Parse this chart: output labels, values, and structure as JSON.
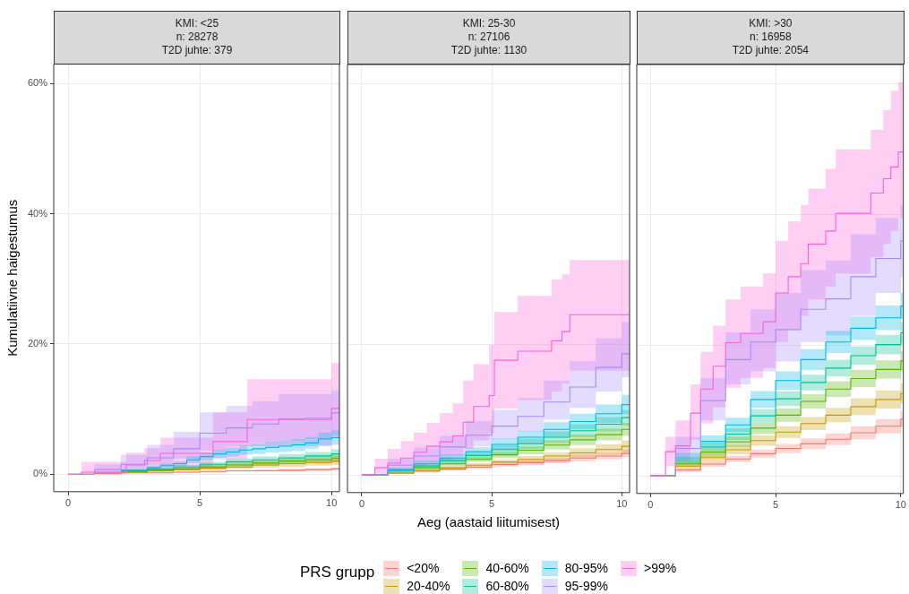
{
  "chart_data": [
    {
      "type": "step",
      "title": "KMI: <25\nn: 28278\nT2D juhte: 379",
      "ylabel": "Kumulatiivne haigestumus",
      "legend": "bottom",
      "legend_title": "PRS grupp",
      "xlim": [
        -0.55,
        10.3
      ],
      "xticks": [
        0,
        5,
        10
      ],
      "ylim": [
        -2.7,
        63
      ],
      "yticks": [
        {
          "value": 0,
          "label": "0%"
        },
        {
          "value": 20,
          "label": "20%"
        },
        {
          "value": 40,
          "label": "40%"
        },
        {
          "value": 60,
          "label": "60%"
        }
      ],
      "grid": true,
      "x": [
        0,
        1,
        2,
        3,
        4,
        5,
        6,
        7,
        8,
        9,
        10,
        10.3
      ],
      "series": [
        {
          "name": "<20%",
          "color": "#f8766d",
          "values": [
            0,
            0.1,
            0.2,
            0.2,
            0.3,
            0.4,
            0.5,
            0.5,
            0.6,
            0.7,
            0.8,
            0.8
          ],
          "lower": [
            0,
            0,
            0.1,
            0.1,
            0.2,
            0.3,
            0.4,
            0.4,
            0.4,
            0.5,
            0.6,
            0.6
          ],
          "upper": [
            0,
            0.2,
            0.2,
            0.3,
            0.4,
            0.5,
            0.6,
            0.7,
            0.8,
            0.9,
            1.0,
            1.0
          ]
        },
        {
          "name": "20-40%",
          "color": "#c49a00",
          "values": [
            null,
            null,
            0.3,
            0.5,
            0.7,
            0.9,
            1.1,
            1.4,
            1.6,
            1.8,
            2.0,
            2.0
          ],
          "lower": [
            0,
            0,
            0.2,
            0.3,
            0.5,
            0.6,
            0.8,
            1.0,
            1.1,
            1.3,
            1.4,
            1.4
          ],
          "upper": [
            0,
            0.2,
            0.4,
            0.7,
            0.9,
            1.2,
            1.4,
            1.8,
            2.1,
            2.3,
            2.6,
            2.6
          ]
        },
        {
          "name": "40-60%",
          "color": "#53b400",
          "values": [
            null,
            null,
            0.4,
            0.6,
            0.8,
            1.1,
            1.4,
            1.7,
            2.0,
            2.2,
            2.4,
            2.4
          ],
          "lower": [
            0,
            0.1,
            0.3,
            0.4,
            0.6,
            0.8,
            1.0,
            1.3,
            1.5,
            1.7,
            1.8,
            1.8
          ],
          "upper": [
            0,
            0.3,
            0.5,
            0.8,
            1.0,
            1.4,
            1.8,
            2.1,
            2.5,
            2.7,
            3.0,
            3.0
          ]
        },
        {
          "name": "60-80%",
          "color": "#00c094",
          "values": [
            null,
            null,
            0.5,
            0.8,
            1.1,
            1.5,
            1.9,
            2.2,
            2.5,
            2.8,
            3.1,
            3.1
          ],
          "lower": [
            0,
            0.1,
            0.3,
            0.5,
            0.8,
            1.1,
            1.4,
            1.7,
            1.9,
            2.2,
            2.4,
            2.4
          ],
          "upper": [
            0,
            0.3,
            0.7,
            1.1,
            1.4,
            1.9,
            2.4,
            2.7,
            3.1,
            3.4,
            3.8,
            3.8
          ]
        },
        {
          "name": "80-95%",
          "color": "#00b6eb",
          "x": [
            0,
            2,
            3,
            3.5,
            4,
            4.5,
            5,
            5.5,
            6,
            6.5,
            7,
            7.5,
            8,
            8.5,
            9,
            9.5,
            10,
            10.3
          ],
          "values": [
            null,
            0.6,
            1.0,
            1.3,
            1.6,
            2.2,
            2.7,
            3.1,
            3.4,
            3.7,
            3.9,
            4.1,
            4.3,
            4.5,
            4.8,
            5.4,
            5.6,
            5.6
          ],
          "lower": [
            0,
            0.4,
            0.7,
            1.0,
            1.2,
            1.7,
            2.1,
            2.5,
            2.7,
            3.0,
            3.1,
            3.3,
            3.4,
            3.6,
            3.9,
            4.4,
            4.5,
            4.5
          ],
          "upper": [
            0,
            0.8,
            1.3,
            1.6,
            2.0,
            2.7,
            3.3,
            3.7,
            4.1,
            4.4,
            4.7,
            4.9,
            5.2,
            5.4,
            5.7,
            6.4,
            6.7,
            6.7
          ]
        },
        {
          "name": "95-99%",
          "color": "#a58aff",
          "values": [
            0,
            0.7,
            1.5,
            2.5,
            3.9,
            6.3,
            7.1,
            7.7,
            8.5,
            8.6,
            9.4,
            9.4
          ],
          "lower": [
            0,
            0.3,
            0.8,
            1.4,
            2.4,
            3.6,
            4.3,
            4.8,
            5.2,
            5.4,
            6.0,
            6.0
          ],
          "upper": [
            0,
            1.5,
            3,
            4.5,
            6.5,
            9.5,
            10.5,
            11.2,
            12.3,
            12.3,
            12.9,
            12.9
          ]
        },
        {
          "name": ">99%",
          "color": "#fb61d7",
          "x": [
            0,
            0.5,
            2.2,
            2.9,
            3.5,
            5.5,
            6.8,
            10,
            10.3
          ],
          "values": [
            0,
            0.3,
            1.4,
            2.1,
            3.2,
            5.0,
            8.4,
            10.1,
            10.1
          ],
          "lower": [
            0,
            0,
            0.3,
            0.6,
            1.1,
            2.3,
            4.3,
            5.5,
            5.5
          ],
          "upper": [
            0,
            1.9,
            3.3,
            4.0,
            5.6,
            9.5,
            14.6,
            17.1,
            17.1
          ]
        }
      ]
    },
    {
      "type": "step",
      "title": "KMI: 25-30\nn: 27106\nT2D juhte: 1130",
      "xlabel": "Aeg (aastaid liitumisest)",
      "tick_labels": "x",
      "xlim": [
        -0.55,
        10.3
      ],
      "xticks": [
        0,
        5,
        10
      ],
      "ylim": [
        -2.7,
        63
      ],
      "yticks": [
        0,
        20,
        40,
        60
      ],
      "grid": true,
      "x": [
        0,
        1,
        2,
        3,
        4,
        5,
        6,
        7,
        8,
        9,
        10,
        10.3
      ],
      "series": [
        {
          "color": "#f8766d",
          "values": [
            0,
            0.3,
            0.6,
            0.9,
            1.2,
            1.6,
            1.9,
            2.2,
            2.6,
            2.9,
            3.3,
            3.3
          ],
          "lower": [
            0,
            0.2,
            0.4,
            0.7,
            0.9,
            1.3,
            1.5,
            1.8,
            2.1,
            2.4,
            2.7,
            2.7
          ],
          "upper": [
            0,
            0.4,
            0.8,
            1.1,
            1.5,
            1.9,
            2.3,
            2.6,
            3.1,
            3.4,
            3.9,
            3.9
          ]
        },
        {
          "color": "#c49a00",
          "values": [
            0,
            0.3,
            0.7,
            1.1,
            1.5,
            2.0,
            2.4,
            2.9,
            3.4,
            3.9,
            4.4,
            4.4
          ],
          "lower": [
            0,
            0.2,
            0.5,
            0.8,
            1.2,
            1.6,
            1.9,
            2.3,
            2.7,
            3.1,
            3.5,
            3.5
          ],
          "upper": [
            0,
            0.4,
            0.9,
            1.4,
            1.8,
            2.4,
            2.9,
            3.5,
            4.1,
            4.7,
            5.3,
            5.3
          ]
        },
        {
          "color": "#53b400",
          "values": [
            null,
            null,
            1.1,
            1.7,
            2.4,
            3.1,
            3.8,
            4.6,
            5.4,
            6.2,
            7.0,
            7.0
          ],
          "lower": [
            0,
            0.3,
            0.8,
            1.4,
            2.0,
            2.6,
            3.2,
            3.9,
            4.6,
            5.3,
            6.0,
            6.0
          ],
          "upper": [
            0,
            0.7,
            1.4,
            2.0,
            2.8,
            3.6,
            4.4,
            5.3,
            6.2,
            7.1,
            8.0,
            8.0
          ]
        },
        {
          "color": "#00c094",
          "values": [
            0,
            0.7,
            1.4,
            2.2,
            3.0,
            3.9,
            4.8,
            5.8,
            6.8,
            7.8,
            8.8,
            8.8
          ],
          "lower": [
            0,
            0.4,
            1.0,
            1.7,
            2.4,
            3.2,
            4.0,
            4.9,
            5.8,
            6.7,
            7.6,
            7.6
          ],
          "upper": [
            0,
            1.0,
            1.8,
            2.7,
            3.6,
            4.6,
            5.6,
            6.7,
            7.8,
            8.9,
            10.0,
            10.0
          ]
        },
        {
          "color": "#00b6eb",
          "values": [
            0,
            0.8,
            1.7,
            2.6,
            3.6,
            4.7,
            5.8,
            7.0,
            8.2,
            9.4,
            10.8,
            10.8
          ],
          "lower": [
            0,
            0.5,
            1.2,
            2.0,
            2.9,
            3.8,
            4.8,
            5.9,
            7.0,
            8.0,
            9.3,
            9.3
          ],
          "upper": [
            0,
            1.1,
            2.2,
            3.2,
            4.3,
            5.6,
            6.8,
            8.1,
            9.4,
            10.8,
            12.3,
            12.3
          ]
        },
        {
          "color": "#a58aff",
          "values": [
            0,
            1.5,
            2.9,
            4.3,
            6.1,
            7.5,
            9.0,
            11.2,
            13.5,
            16.5,
            18.6,
            18.6
          ],
          "lower": [
            0,
            0.8,
            1.9,
            3,
            4.4,
            5.5,
            6.7,
            8.5,
            10.3,
            12.8,
            15,
            15
          ],
          "upper": [
            0,
            2.5,
            4.2,
            6,
            8.3,
            10,
            11.8,
            14.5,
            17.5,
            21,
            23.5,
            23.5
          ]
        },
        {
          "color": "#fb61d7",
          "x": [
            0,
            0.5,
            1,
            1.5,
            2,
            2.5,
            3,
            3.5,
            3.9,
            4.3,
            4.9,
            5.1,
            6,
            7.3,
            7.7,
            8,
            10.3
          ],
          "values": [
            0,
            1.1,
            1.8,
            2.6,
            3.5,
            4.4,
            5.1,
            6.0,
            8.1,
            10.5,
            12.2,
            17.6,
            19.0,
            20.6,
            22.0,
            24.6,
            24.6
          ],
          "lower": [
            0,
            0.2,
            0.5,
            0.9,
            1.3,
            1.8,
            2.2,
            2.8,
            4,
            5.3,
            6.5,
            10.2,
            11.5,
            12.8,
            14,
            16,
            16
          ],
          "upper": [
            0,
            2.5,
            4,
            5.2,
            6.5,
            8,
            9.5,
            11,
            14.5,
            17,
            20,
            25,
            27.5,
            30,
            30.8,
            33,
            33
          ]
        }
      ]
    },
    {
      "type": "step",
      "title": "KMI: >30\nn: 16958\nT2D juhte: 2054",
      "tick_labels": "x",
      "xlim": [
        -0.55,
        10.1
      ],
      "xticks": [
        0,
        5,
        10
      ],
      "ylim": [
        -2.7,
        63
      ],
      "yticks": [
        0,
        20,
        40,
        60
      ],
      "grid": true,
      "x": [
        0,
        1,
        2,
        3,
        4,
        5,
        6,
        7,
        8,
        9,
        10,
        10.1
      ],
      "series": [
        {
          "color": "#f8766d",
          "values": [
            0,
            0.9,
            1.8,
            2.6,
            3.4,
            4.2,
            4.9,
            5.6,
            6.6,
            7.6,
            8.7,
            8.7
          ],
          "lower": [
            0,
            0.6,
            1.4,
            2.1,
            2.8,
            3.5,
            4.1,
            4.7,
            5.6,
            6.5,
            7.5,
            7.5
          ],
          "upper": [
            0,
            1.2,
            2.2,
            3.1,
            4.0,
            4.9,
            5.7,
            6.5,
            7.6,
            8.7,
            9.9,
            9.9
          ]
        },
        {
          "color": "#c49a00",
          "values": [
            0,
            1.5,
            2.8,
            4.0,
            5.4,
            6.7,
            8.0,
            9.3,
            10.6,
            11.7,
            12.6,
            12.6
          ],
          "lower": [
            0,
            1.1,
            2.2,
            3.3,
            4.6,
            5.8,
            7.0,
            8.2,
            9.3,
            10.3,
            11.1,
            11.1
          ],
          "upper": [
            0,
            1.9,
            3.4,
            4.7,
            6.2,
            7.6,
            9.0,
            10.4,
            11.9,
            13.1,
            14.1,
            14.1
          ]
        },
        {
          "color": "#53b400",
          "values": [
            0,
            1.9,
            3.6,
            5.2,
            7.3,
            9.3,
            11.4,
            13.3,
            14.9,
            16.3,
            17.6,
            17.6
          ],
          "lower": [
            0,
            1.4,
            2.9,
            4.4,
            6.4,
            8.3,
            10.3,
            12.1,
            13.6,
            14.9,
            16.1,
            16.1
          ],
          "upper": [
            0,
            2.4,
            4.3,
            6.0,
            8.2,
            10.3,
            12.5,
            14.5,
            16.2,
            17.7,
            19.1,
            19.1
          ]
        },
        {
          "color": "#00c094",
          "values": [
            null,
            null,
            4.4,
            6.4,
            9.2,
            11.8,
            14.3,
            16.5,
            18.4,
            20.1,
            21.9,
            21.9
          ],
          "lower": [
            0,
            1.7,
            3.6,
            5.5,
            8.2,
            10.7,
            13.1,
            15.2,
            17.0,
            18.6,
            20.3,
            20.3
          ],
          "upper": [
            0,
            2.9,
            5.2,
            7.3,
            10.2,
            12.9,
            15.5,
            17.8,
            19.8,
            21.6,
            23.5,
            23.5
          ]
        },
        {
          "color": "#00b6eb",
          "values": [
            null,
            null,
            5.3,
            7.8,
            11.7,
            14.6,
            17.8,
            20.5,
            22.6,
            24.2,
            26.0,
            26.0
          ],
          "lower": [
            0,
            2.1,
            4.4,
            6.7,
            10.4,
            13.2,
            16.2,
            18.8,
            20.8,
            22.3,
            24.0,
            24.0
          ],
          "upper": [
            0,
            3.5,
            6.2,
            8.9,
            13.0,
            16.0,
            19.4,
            22.2,
            24.4,
            26.1,
            28.0,
            28.0
          ]
        },
        {
          "color": "#a58aff",
          "values": [
            0,
            4.2,
            11.5,
            17.8,
            20.5,
            22.4,
            25.5,
            27.1,
            30.5,
            33.3,
            36.0,
            36.0
          ],
          "lower": [
            0,
            2.5,
            8.5,
            14,
            16,
            17.5,
            20.5,
            21.5,
            24.5,
            28,
            30.5,
            30.5
          ],
          "upper": [
            0,
            6,
            15,
            22,
            25.5,
            28,
            31.5,
            33,
            37,
            39.5,
            41.5,
            41.5
          ]
        },
        {
          "color": "#fb61d7",
          "x": [
            0,
            0.6,
            1,
            1.6,
            2,
            2.5,
            3,
            3.6,
            4.5,
            5,
            5.5,
            6,
            6.3,
            7,
            7.4,
            8.8,
            9.3,
            9.6,
            9.9,
            10.1
          ],
          "values": [
            0,
            3.7,
            4.6,
            9.6,
            13.3,
            16.8,
            20.4,
            21.8,
            23.6,
            28,
            30.5,
            32.5,
            35.5,
            37.5,
            40.2,
            43.3,
            45.5,
            47.3,
            49.6,
            49.6
          ],
          "lower": [
            0,
            1.5,
            2.2,
            5.5,
            8,
            10.5,
            13.5,
            15,
            16.5,
            20.5,
            22.5,
            24.5,
            27,
            29,
            31,
            33.5,
            35.5,
            37.5,
            39.5,
            39.5
          ],
          "upper": [
            0,
            6,
            8.5,
            14,
            19,
            23,
            27,
            29,
            31,
            36,
            39,
            41.5,
            44,
            47,
            50,
            53,
            56,
            59,
            60.3,
            60.3
          ]
        }
      ]
    }
  ]
}
